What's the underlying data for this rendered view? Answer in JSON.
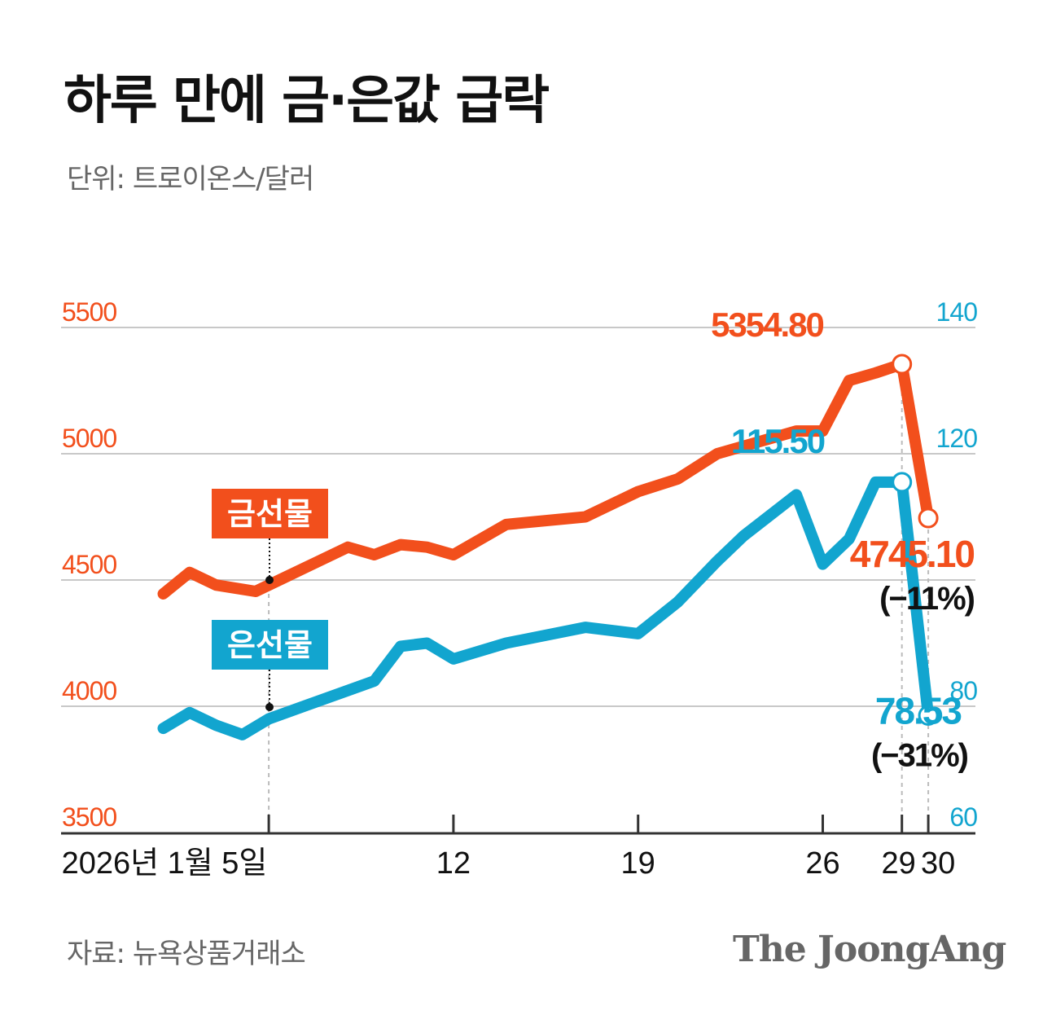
{
  "title": "하루 만에 금·은값 급락",
  "unit": "단위: 트로이온스/달러",
  "source": "자료: 뉴욕상품거래소",
  "logo": "The JoongAng",
  "colors": {
    "gold": "#f24f1c",
    "silver": "#12a5cf",
    "grid": "#c8c8c8",
    "axis": "#333333",
    "box_text": "#ffffff",
    "note_text": "#111111"
  },
  "chart_data": {
    "type": "line",
    "title": "하루 만에 금·은값 급락",
    "dual_axis": true,
    "x_ticks": [
      {
        "day": 5,
        "label": "2026년 1월 5일"
      },
      {
        "day": 12,
        "label": "12"
      },
      {
        "day": 19,
        "label": "19"
      },
      {
        "day": 26,
        "label": "26"
      },
      {
        "day": 29,
        "label": "29"
      },
      {
        "day": 30,
        "label": "30"
      }
    ],
    "left_axis": {
      "min": 3500,
      "max": 5500,
      "ticks": [
        "5500",
        "5000",
        "4500",
        "4000",
        "3500"
      ]
    },
    "right_axis": {
      "min": 60,
      "max": 140,
      "ticks": [
        "140",
        "120",
        "80",
        "60"
      ]
    },
    "series": [
      {
        "name": "금선물",
        "axis": "left",
        "x": [
          1,
          2,
          3,
          4.5,
          5.5,
          8,
          9,
          10,
          11,
          12,
          14,
          17,
          19,
          20.5,
          22,
          23,
          25,
          26,
          27,
          28,
          29,
          30
        ],
        "y": [
          4445,
          4530,
          4480,
          4455,
          4505,
          4630,
          4600,
          4640,
          4630,
          4600,
          4720,
          4750,
          4850,
          4900,
          5000,
          5030,
          5090,
          5090,
          5290,
          5320,
          5354.8,
          4745.1
        ],
        "peak_label": "5354.80",
        "last_label": "4745.10",
        "change_label": "(−11%)"
      },
      {
        "name": "은선물",
        "axis": "right",
        "x": [
          1,
          2,
          3,
          4,
          5,
          8,
          9,
          10,
          11,
          12,
          14,
          17,
          19,
          20.5,
          22,
          23,
          25,
          26,
          27,
          28,
          29,
          30
        ],
        "y": [
          76.5,
          79,
          77,
          75.5,
          78,
          82.5,
          84,
          89.5,
          90,
          87.5,
          90,
          92.5,
          91.5,
          96.5,
          103,
          107,
          113.5,
          102.5,
          106.5,
          115.5,
          115.5,
          78.53
        ],
        "peak_label": "115.50",
        "last_label": "78.53",
        "change_label": "(−31%)"
      }
    ]
  }
}
